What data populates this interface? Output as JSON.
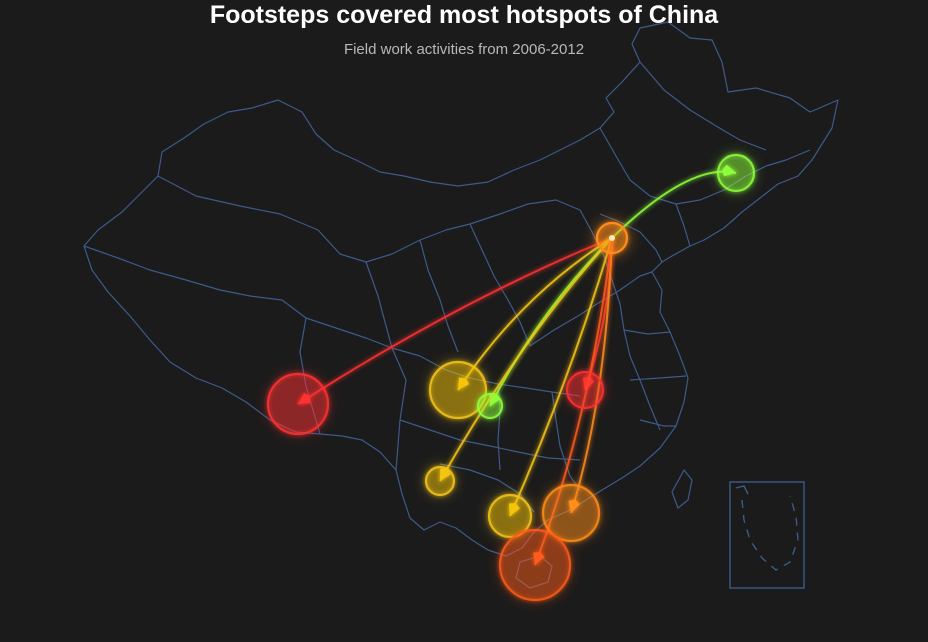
{
  "title": "Footsteps covered most hotspots of China",
  "subtitle": "Field work activities from 2006-2012",
  "colors": {
    "background": "#1b1b1b",
    "border": "#3d5a8a",
    "green": "#8dff3a",
    "yellow": "#f5c518",
    "orange": "#ff8c1a",
    "red": "#ff3030",
    "red_orange": "#ff5a1a"
  },
  "origin": {
    "name": "origin-hub",
    "color": "orange"
  },
  "destinations": [
    {
      "name": "northeast",
      "color": "green"
    },
    {
      "name": "tibet",
      "color": "red"
    },
    {
      "name": "sichuan-east",
      "color": "yellow"
    },
    {
      "name": "chongqing",
      "color": "green"
    },
    {
      "name": "central-south",
      "color": "red"
    },
    {
      "name": "yunnan",
      "color": "yellow"
    },
    {
      "name": "guangxi",
      "color": "yellow"
    },
    {
      "name": "guangdong",
      "color": "orange"
    },
    {
      "name": "hainan",
      "color": "red_orange"
    }
  ]
}
